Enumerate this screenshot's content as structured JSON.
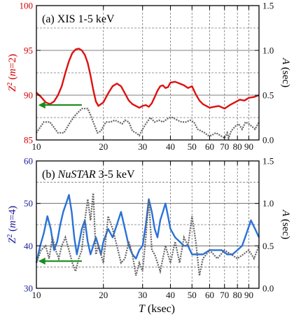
{
  "xlabel": "T (ksec)",
  "xtick_labels": [
    "10",
    "20",
    "30",
    "40",
    "50",
    "60",
    "70",
    "80",
    "90"
  ],
  "chart_data": [
    {
      "type": "line",
      "title": "(a) XIS 1-5 keV",
      "xscale": "log",
      "xlim": [
        10,
        100
      ],
      "xtick_values": [
        10,
        20,
        30,
        40,
        50,
        60,
        70,
        80,
        90
      ],
      "ylabel_left": "Z² (m=2)",
      "ylim_left": [
        85,
        100
      ],
      "yticks_left": [
        "85",
        "90",
        "95",
        "100"
      ],
      "ylabel_right": "A (sec)",
      "ylim_right": [
        0,
        1.5
      ],
      "yticks_right": [
        "0.0",
        "0.5",
        "1.0",
        "1.5"
      ],
      "grid": true,
      "colors": {
        "left_axis": "#d40000",
        "z_series": "#dd1111",
        "a_series": "#666666",
        "arrow": "#1a8c1a",
        "right_axis": "#000000"
      },
      "series": [
        {
          "axis": "left",
          "x": [
            10,
            10.5,
            11,
            11.5,
            12,
            12.5,
            13,
            13.5,
            14,
            14.5,
            15,
            15.5,
            16,
            16.5,
            17,
            17.5,
            18,
            18.5,
            19,
            20,
            21,
            22,
            23,
            24,
            25,
            26,
            27,
            28,
            29,
            30,
            31,
            32,
            33,
            34,
            35,
            36,
            37,
            38,
            39,
            40,
            42,
            44,
            46,
            48,
            50,
            52,
            54,
            56,
            58,
            60,
            63,
            66,
            70,
            74,
            78,
            82,
            86,
            90,
            95,
            100
          ],
          "values": [
            90.3,
            89.8,
            89.2,
            89.0,
            89.3,
            90.0,
            91.0,
            92.5,
            93.8,
            94.7,
            95.1,
            95.2,
            95.0,
            94.5,
            93.6,
            92.2,
            90.6,
            89.3,
            88.8,
            89.2,
            90.2,
            91.0,
            91.3,
            91.0,
            90.2,
            89.4,
            89.0,
            88.8,
            88.6,
            88.8,
            88.9,
            88.7,
            89.1,
            89.8,
            90.5,
            91.0,
            91.1,
            90.8,
            90.9,
            91.4,
            91.5,
            91.3,
            91.1,
            90.8,
            91.0,
            90.1,
            89.4,
            89.0,
            88.8,
            88.6,
            88.7,
            88.8,
            88.5,
            88.9,
            89.2,
            89.5,
            89.4,
            89.7,
            89.8,
            90.0
          ]
        },
        {
          "axis": "right",
          "x": [
            10,
            10.8,
            11.5,
            12.5,
            13.3,
            14.2,
            15,
            16,
            17,
            17.5,
            18,
            18.8,
            19.5,
            20.5,
            21.5,
            22.5,
            23.5,
            24.3,
            25,
            26,
            27,
            28,
            29,
            30,
            31,
            32.5,
            34,
            35.5,
            37,
            38,
            39.5,
            41,
            43,
            45,
            47,
            49,
            51,
            53,
            55,
            57,
            59,
            61,
            64,
            67,
            70,
            72,
            73,
            75,
            78,
            81,
            84,
            87,
            90,
            93,
            96,
            100
          ],
          "values": [
            0.08,
            0.2,
            0.2,
            0.08,
            0.08,
            0.2,
            0.28,
            0.35,
            0.35,
            0.28,
            0.2,
            0.08,
            0.1,
            0.2,
            0.2,
            0.22,
            0.2,
            0.18,
            0.22,
            0.2,
            0.1,
            0.08,
            0.05,
            0.12,
            0.18,
            0.25,
            0.2,
            0.22,
            0.2,
            0.22,
            0.25,
            0.25,
            0.22,
            0.2,
            0.2,
            0.22,
            0.2,
            0.12,
            0.1,
            0.08,
            0.05,
            0.05,
            0.08,
            0.05,
            0.02,
            0.08,
            0.02,
            0.1,
            0.15,
            0.18,
            0.12,
            0.2,
            0.18,
            0.15,
            0.12,
            0.2
          ]
        }
      ],
      "arrow": {
        "from_x": 16,
        "to_x": 10.2,
        "y_right": 0.39
      }
    },
    {
      "type": "line",
      "title": "(b) NuSTAR 3-5 keV",
      "title_plain": "(b) ",
      "title_italic": "NuSTAR",
      "title_rest": " 3-5 keV",
      "xscale": "log",
      "xlim": [
        10,
        100
      ],
      "xtick_values": [
        10,
        20,
        30,
        40,
        50,
        60,
        70,
        80,
        90
      ],
      "ylabel_left": "Z² (m=4)",
      "ylim_left": [
        30,
        60
      ],
      "yticks_left": [
        "30",
        "40",
        "50",
        "60"
      ],
      "ylabel_right": "A (sec)",
      "ylim_right": [
        0,
        1.5
      ],
      "yticks_right": [
        "0.0",
        "0.5",
        "1.0",
        "1.5"
      ],
      "grid": true,
      "colors": {
        "left_axis": "#1a1a99",
        "z_series": "#2a72d8",
        "a_series": "#666666",
        "arrow": "#1a8c1a",
        "right_axis": "#000000"
      },
      "series": [
        {
          "axis": "left",
          "x": [
            10,
            10.4,
            10.8,
            11.2,
            11.6,
            12,
            12.4,
            12.8,
            13.2,
            13.6,
            14,
            14.4,
            14.8,
            15.2,
            15.6,
            16,
            16.5,
            17,
            17.5,
            18,
            18.5,
            19,
            19.5,
            20,
            21,
            22,
            23,
            24,
            25,
            26,
            27,
            28,
            29,
            30,
            31,
            32,
            33,
            34,
            35,
            36,
            37,
            38,
            39,
            40,
            42,
            44,
            46,
            48,
            50,
            53,
            56,
            60,
            64,
            68,
            72,
            76,
            80,
            84,
            88,
            92,
            96,
            100
          ],
          "values": [
            36,
            40,
            43,
            47,
            44,
            39,
            41,
            45,
            48,
            50,
            52,
            48,
            42,
            38,
            41,
            44,
            46,
            41,
            38,
            40,
            42,
            40,
            38,
            41,
            44,
            42,
            45,
            48,
            44,
            40,
            38,
            37,
            39,
            40,
            45,
            51,
            48,
            44,
            42,
            46,
            48,
            50,
            47,
            44,
            42,
            41,
            40,
            40,
            38,
            38,
            38,
            39,
            39,
            39,
            38,
            38,
            39,
            40,
            43,
            46,
            44,
            42
          ]
        },
        {
          "axis": "right",
          "x": [
            10,
            10.5,
            11,
            11.4,
            11.8,
            12.2,
            12.6,
            13,
            13.5,
            14,
            14.5,
            15,
            15.5,
            16,
            16.5,
            17,
            17.5,
            18,
            18.5,
            19,
            20,
            21,
            22,
            23,
            24,
            25,
            26,
            27,
            28,
            29,
            30,
            31,
            32,
            33,
            34,
            35,
            36,
            38,
            40,
            42,
            44,
            46,
            48,
            50,
            52,
            54,
            56,
            58,
            60,
            65,
            70,
            75,
            80,
            85,
            90,
            95,
            100
          ],
          "values": [
            0.3,
            0.45,
            0.5,
            0.35,
            0.6,
            0.45,
            0.35,
            0.5,
            0.6,
            0.45,
            0.3,
            0.2,
            0.35,
            0.45,
            0.8,
            1.05,
            0.8,
            1.12,
            0.4,
            0.5,
            0.3,
            0.85,
            0.7,
            0.5,
            0.3,
            0.35,
            0.55,
            0.4,
            0.15,
            0.3,
            0.2,
            0.6,
            1.05,
            0.45,
            0.4,
            0.3,
            0.2,
            0.5,
            0.3,
            0.55,
            0.3,
            0.6,
            0.5,
            0.85,
            0.55,
            0.15,
            0.35,
            0.4,
            0.45,
            0.35,
            0.45,
            0.4,
            0.35,
            0.4,
            0.45,
            0.35,
            0.5
          ]
        }
      ],
      "arrow": {
        "from_x": 16,
        "to_x": 10.2,
        "y_right": 0.32
      }
    }
  ]
}
